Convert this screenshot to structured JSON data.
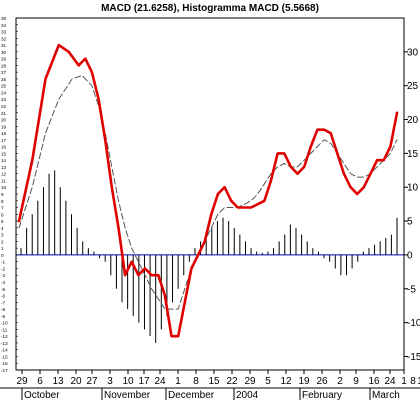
{
  "chart_data": {
    "type": "line",
    "title": "MACD (21.6258), Histogramma MACD (5.5668)",
    "ylim": [
      -17,
      35
    ],
    "y_ticks_right": [
      30,
      25,
      20,
      15,
      10,
      5,
      0,
      -5,
      -10,
      -15
    ],
    "y_ticks_left": [
      35,
      34,
      33,
      32,
      31,
      30,
      29,
      28,
      27,
      26,
      25,
      24,
      23,
      22,
      21,
      20,
      19,
      18,
      17,
      16,
      15,
      14,
      13,
      12,
      11,
      10,
      9,
      8,
      7,
      6,
      5,
      4,
      3,
      2,
      1,
      0,
      -1,
      -2,
      -3,
      -4,
      -5,
      -6,
      -7,
      -8,
      -9,
      -10,
      -11,
      -12,
      -13,
      -14,
      -15,
      -16,
      -17
    ],
    "x_tick_labels": [
      "29",
      "6",
      "13",
      "20",
      "27",
      "3",
      "10",
      "17",
      "24",
      "1",
      "8",
      "15",
      "22",
      "29",
      "5",
      "12",
      "19",
      "26",
      "2",
      "9",
      "16",
      "24",
      "1",
      "8",
      "1"
    ],
    "x_month_labels": [
      "October",
      "November",
      "December",
      "2004",
      "February",
      "March"
    ],
    "grid": false,
    "legend": "none",
    "colors": {
      "macd": "#e00000",
      "signal": "#555555",
      "histogram": "#000000",
      "zero_line": "#0000aa"
    },
    "series": [
      {
        "role": "macd",
        "style": "red-thick",
        "points": [
          [
            0,
            5
          ],
          [
            2,
            14
          ],
          [
            4,
            26
          ],
          [
            6,
            31
          ],
          [
            7.5,
            30
          ],
          [
            9,
            28
          ],
          [
            10,
            29
          ],
          [
            11,
            27
          ],
          [
            12,
            23
          ],
          [
            13,
            17
          ],
          [
            14,
            10
          ],
          [
            15,
            4
          ],
          [
            16,
            -3
          ],
          [
            17,
            -1
          ],
          [
            18,
            -3
          ],
          [
            19,
            -2
          ],
          [
            20,
            -3
          ],
          [
            21,
            -3
          ],
          [
            22,
            -6
          ],
          [
            23,
            -12
          ],
          [
            24,
            -12
          ],
          [
            25,
            -7
          ],
          [
            26,
            -2
          ],
          [
            27,
            0
          ],
          [
            28,
            2
          ],
          [
            29,
            6
          ],
          [
            30,
            9
          ],
          [
            31,
            10
          ],
          [
            32,
            8
          ],
          [
            33,
            7
          ],
          [
            34,
            7
          ],
          [
            35,
            7
          ],
          [
            36,
            7.5
          ],
          [
            37,
            8
          ],
          [
            38,
            11
          ],
          [
            39,
            15
          ],
          [
            40,
            15
          ],
          [
            41,
            13
          ],
          [
            42,
            12
          ],
          [
            43,
            13
          ],
          [
            44,
            16
          ],
          [
            45,
            18.5
          ],
          [
            46,
            18.5
          ],
          [
            47,
            18
          ],
          [
            48,
            15
          ],
          [
            49,
            12
          ],
          [
            50,
            10
          ],
          [
            51,
            9
          ],
          [
            52,
            10
          ],
          [
            53,
            12
          ],
          [
            54,
            14
          ],
          [
            55,
            14
          ],
          [
            56,
            16
          ],
          [
            57,
            21
          ]
        ]
      },
      {
        "role": "signal",
        "style": "gray-dashed",
        "points": [
          [
            0,
            4
          ],
          [
            2,
            10
          ],
          [
            4,
            18
          ],
          [
            6,
            23
          ],
          [
            8,
            26
          ],
          [
            9.5,
            26.5
          ],
          [
            11,
            25
          ],
          [
            12,
            22
          ],
          [
            13,
            18
          ],
          [
            14,
            13
          ],
          [
            15,
            8
          ],
          [
            16,
            4
          ],
          [
            17,
            1
          ],
          [
            18,
            -1
          ],
          [
            19,
            -3
          ],
          [
            20,
            -5
          ],
          [
            21,
            -6.5
          ],
          [
            22,
            -8
          ],
          [
            23,
            -8
          ],
          [
            24,
            -8
          ],
          [
            25,
            -5
          ],
          [
            26,
            -2
          ],
          [
            27,
            0
          ],
          [
            28,
            2
          ],
          [
            29,
            4
          ],
          [
            30,
            6
          ],
          [
            31,
            7
          ],
          [
            32,
            7
          ],
          [
            33,
            7
          ],
          [
            34,
            7.5
          ],
          [
            35,
            8
          ],
          [
            36,
            9
          ],
          [
            37,
            10.5
          ],
          [
            38,
            12
          ],
          [
            39,
            13
          ],
          [
            40,
            13.5
          ],
          [
            41,
            13
          ],
          [
            42,
            13
          ],
          [
            43,
            14
          ],
          [
            44,
            15
          ],
          [
            45,
            16
          ],
          [
            46,
            17
          ],
          [
            47,
            16.5
          ],
          [
            48,
            15
          ],
          [
            49,
            13.5
          ],
          [
            50,
            12
          ],
          [
            51,
            11.5
          ],
          [
            52,
            11.5
          ],
          [
            53,
            12
          ],
          [
            54,
            13
          ],
          [
            55,
            14
          ],
          [
            56,
            15
          ],
          [
            57,
            17
          ]
        ]
      },
      {
        "role": "histogram",
        "style": "black-bars",
        "values": [
          1,
          4,
          6,
          8,
          10,
          12,
          12.5,
          10,
          8,
          6,
          4,
          2,
          1,
          0.5,
          -0.5,
          -1,
          -3,
          -5,
          -7,
          -8,
          -9,
          -10,
          -11,
          -12,
          -13,
          -11,
          -9,
          -7,
          -5,
          -3,
          -1,
          1,
          2,
          3,
          4,
          5,
          5.5,
          5,
          4,
          3,
          2,
          1,
          0.5,
          0.3,
          0.5,
          1,
          2,
          3,
          4.5,
          4,
          3,
          2,
          1,
          0.5,
          -0.5,
          -1,
          -2,
          -3,
          -3,
          -2,
          -1,
          0.5,
          1,
          1.5,
          2,
          2.5,
          3,
          5.5
        ]
      }
    ]
  }
}
